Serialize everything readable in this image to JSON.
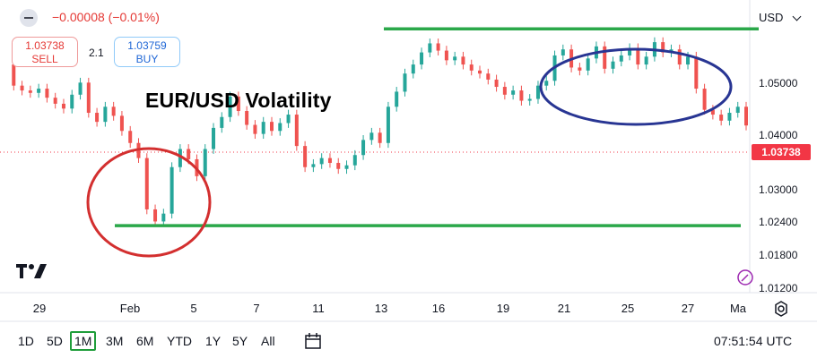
{
  "header": {
    "change": "−0.00008 (−0.01%)",
    "sell_price": "1.03738",
    "sell_label": "SELL",
    "spread": "2.1",
    "buy_price": "1.03759",
    "buy_label": "BUY",
    "currency": "USD"
  },
  "toolbar": {
    "ranges": [
      "1D",
      "5D",
      "1M",
      "3M",
      "6M",
      "YTD",
      "1Y",
      "5Y",
      "All"
    ],
    "active_range": "1M",
    "clock": "07:51:54 UTC"
  },
  "colors": {
    "up": "#26a69a",
    "down": "#ef5350",
    "support_line": "#2ba84a",
    "circle_low": "#d32f2f",
    "circle_high": "#283593",
    "last_price": "#f23645"
  },
  "icons": [
    "minus-icon",
    "chevron-down-icon",
    "tradingview-logo-icon",
    "gear-icon",
    "wand-icon",
    "compare-icon"
  ],
  "chart_data": {
    "type": "line",
    "title": "EUR/USD Volatility",
    "y_ticks": [
      "1.05000",
      "1.04000",
      "1.03000",
      "1.02400",
      "1.01800",
      "1.01200"
    ],
    "x_ticks": [
      "29",
      "Feb",
      "5",
      "7",
      "11",
      "13",
      "16",
      "19",
      "21",
      "25",
      "27",
      "Ma"
    ],
    "last_price": "1.03738",
    "ylim": [
      1.01,
      1.057
    ],
    "horizontal_lines": [
      1.0534,
      1.0208
    ],
    "series": [
      {
        "values": [
          1.0475,
          1.044,
          1.0432,
          1.0428,
          1.0435,
          1.042,
          1.041,
          1.0402,
          1.0425,
          1.0445,
          1.0395,
          1.038,
          1.0405,
          1.039,
          1.0365,
          1.0345,
          1.032,
          1.0235,
          1.0215,
          1.0228,
          1.0305,
          1.0335,
          1.0318,
          1.029,
          1.0335,
          1.037,
          1.0388,
          1.0422,
          1.0398,
          1.0375,
          1.036,
          1.038,
          1.0365,
          1.0378,
          1.0392,
          1.034,
          1.0305,
          1.031,
          1.032,
          1.0312,
          1.0302,
          1.0308,
          1.0325,
          1.035,
          1.0362,
          1.0345,
          1.0405,
          1.043,
          1.046,
          1.0475,
          1.0495,
          1.051,
          1.0498,
          1.0482,
          1.0488,
          1.0475,
          1.0465,
          1.046,
          1.045,
          1.0438,
          1.0425,
          1.0432,
          1.0415,
          1.0418,
          1.044,
          1.0448,
          1.049,
          1.05,
          1.047,
          1.0465,
          1.0485,
          1.0505,
          1.0468,
          1.048,
          1.049,
          1.0502,
          1.0475,
          1.0488,
          1.0512,
          1.0495,
          1.05,
          1.0475,
          1.0488,
          1.0435,
          1.04,
          1.0392,
          1.0382,
          1.0395,
          1.0405,
          1.0374
        ]
      }
    ]
  }
}
